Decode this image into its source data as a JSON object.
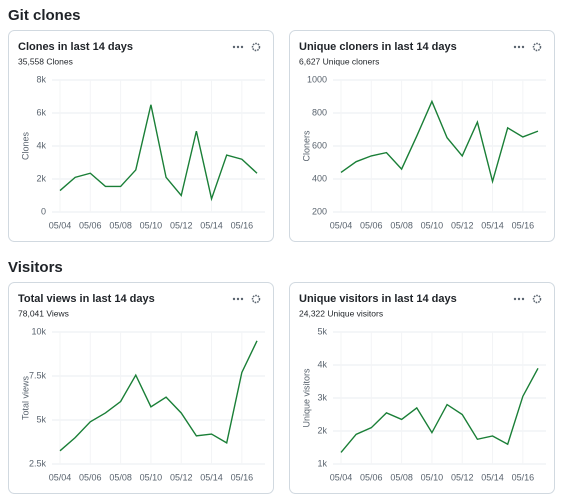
{
  "sections": [
    "Git clones",
    "Visitors"
  ],
  "chart_data": [
    {
      "type": "line",
      "title": "Clones in last 14 days",
      "subtitle": "35,558 Clones",
      "ylabel": "Clones",
      "categories": [
        "05/04",
        null,
        "05/06",
        null,
        "05/08",
        null,
        "05/10",
        null,
        "05/12",
        null,
        "05/14",
        null,
        "05/16",
        null
      ],
      "values": [
        1300,
        2100,
        2350,
        1550,
        1550,
        2550,
        6500,
        2100,
        1000,
        4900,
        800,
        3450,
        3200,
        2350
      ],
      "color": "#1a7f37",
      "ylim": [
        0,
        8000
      ],
      "yticks": [
        0,
        {
          "value": 2000,
          "label": "2k"
        },
        {
          "value": 4000,
          "label": "4k"
        },
        {
          "value": 6000,
          "label": "6k"
        },
        {
          "value": 8000,
          "label": "8k"
        }
      ],
      "grid": true
    },
    {
      "type": "line",
      "title": "Unique cloners in last 14 days",
      "subtitle": "6,627 Unique cloners",
      "ylabel": "Cloners",
      "categories": [
        "05/04",
        null,
        "05/06",
        null,
        "05/08",
        null,
        "05/10",
        null,
        "05/12",
        null,
        "05/14",
        null,
        "05/16",
        null
      ],
      "values": [
        440,
        505,
        540,
        560,
        460,
        660,
        870,
        650,
        540,
        745,
        385,
        710,
        655,
        690
      ],
      "color": "#1a7f37",
      "ylim": [
        200,
        1000
      ],
      "yticks": [
        200,
        400,
        600,
        800,
        1000
      ],
      "grid": true
    },
    {
      "type": "line",
      "title": "Total views in last 14 days",
      "subtitle": "78,041 Views",
      "ylabel": "Total views",
      "categories": [
        "05/04",
        null,
        "05/06",
        null,
        "05/08",
        null,
        "05/10",
        null,
        "05/12",
        null,
        "05/14",
        null,
        "05/16",
        null
      ],
      "values": [
        3250,
        4000,
        4900,
        5400,
        6050,
        7550,
        5750,
        6300,
        5400,
        4100,
        4200,
        3700,
        7700,
        9500
      ],
      "color": "#1a7f37",
      "ylim": [
        2500,
        10000
      ],
      "yticks": [
        {
          "value": 2500,
          "label": "2.5k"
        },
        {
          "value": 5000,
          "label": "5k"
        },
        {
          "value": 7500,
          "label": "7.5k"
        },
        {
          "value": 10000,
          "label": "10k"
        }
      ],
      "grid": true
    },
    {
      "type": "line",
      "title": "Unique visitors in last 14 days",
      "subtitle": "24,322 Unique visitors",
      "ylabel": "Unique visitors",
      "categories": [
        "05/04",
        null,
        "05/06",
        null,
        "05/08",
        null,
        "05/10",
        null,
        "05/12",
        null,
        "05/14",
        null,
        "05/16",
        null
      ],
      "values": [
        1350,
        1900,
        2100,
        2550,
        2350,
        2700,
        1950,
        2800,
        2500,
        1750,
        1850,
        1600,
        3050,
        3900
      ],
      "color": "#1a7f37",
      "ylim": [
        1000,
        5000
      ],
      "yticks": [
        {
          "value": 1000,
          "label": "1k"
        },
        {
          "value": 2000,
          "label": "2k"
        },
        {
          "value": 3000,
          "label": "3k"
        },
        {
          "value": 4000,
          "label": "4k"
        },
        {
          "value": 5000,
          "label": "5k"
        }
      ],
      "grid": true
    }
  ]
}
